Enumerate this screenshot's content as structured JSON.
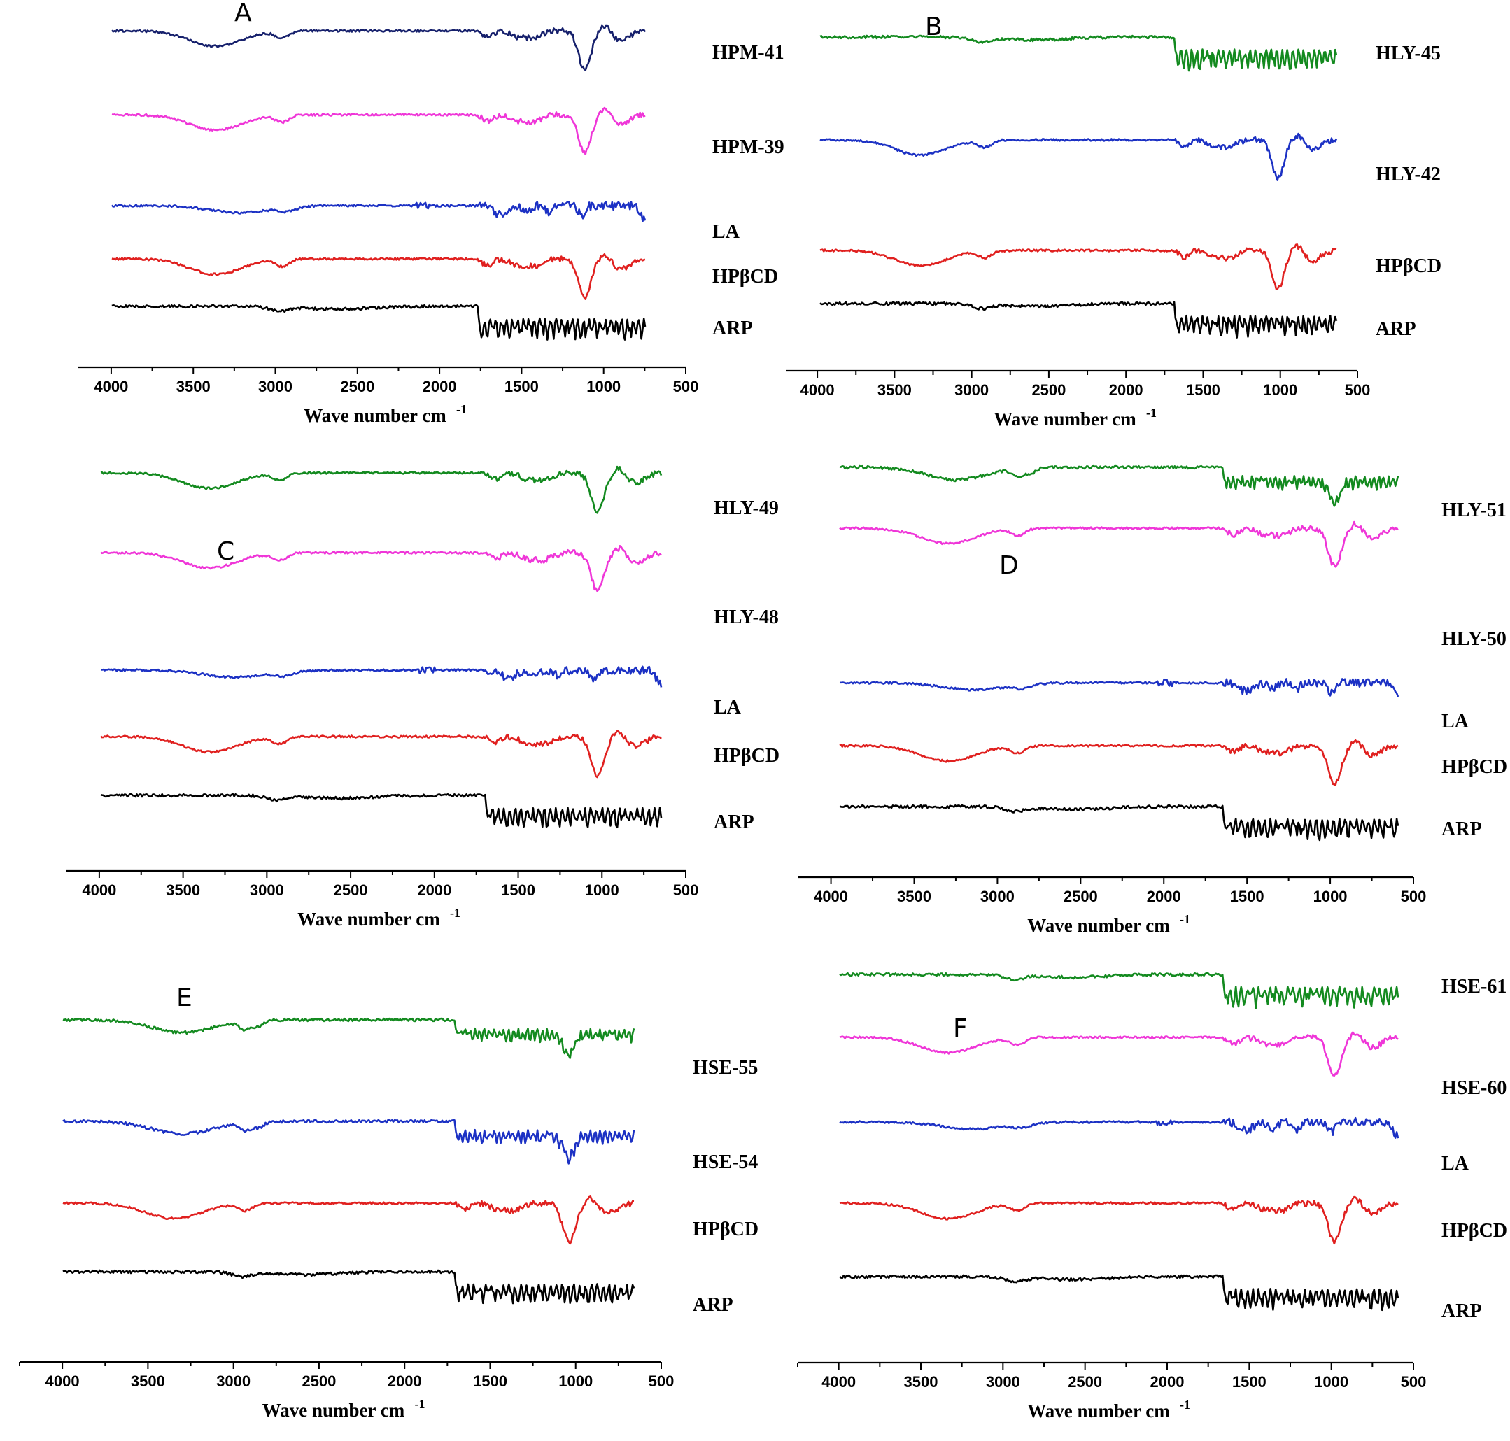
{
  "figure": {
    "x_ticks": [
      "4000",
      "3500",
      "3000",
      "2500",
      "2000",
      "1500",
      "1000",
      "500"
    ],
    "xlabel": "Wave number cm",
    "xlabel_unit_sup": "-1",
    "colors": {
      "black": "#000000",
      "red": "#e0201f",
      "blue": "#1c31c4",
      "magenta": "#ef36d8",
      "green": "#138a1f",
      "navy": "#16206c"
    }
  },
  "chart_data": [
    {
      "panel": "A",
      "type": "line",
      "xlabel": "Wave number cm-1",
      "xlim": [
        4200,
        500
      ],
      "series": [
        {
          "name": "HPM-41",
          "color": "#16206c",
          "style": "cd"
        },
        {
          "name": "HPM-39",
          "color": "#ef36d8",
          "style": "cd"
        },
        {
          "name": "LA",
          "color": "#1c31c4",
          "style": "la"
        },
        {
          "name": "HPβCD",
          "color": "#e0201f",
          "style": "cd"
        },
        {
          "name": "ARP",
          "color": "#000000",
          "style": "arp"
        }
      ]
    },
    {
      "panel": "B",
      "type": "line",
      "xlabel": "Wave number cm-1",
      "xlim": [
        4200,
        500
      ],
      "series": [
        {
          "name": "HLY-45",
          "color": "#138a1f",
          "style": "arp"
        },
        {
          "name": "HLY-42",
          "color": "#1c31c4",
          "style": "cd"
        },
        {
          "name": "HPβCD",
          "color": "#e0201f",
          "style": "cd"
        },
        {
          "name": "ARP",
          "color": "#000000",
          "style": "arp"
        }
      ]
    },
    {
      "panel": "C",
      "type": "line",
      "xlabel": "Wave number cm-1",
      "xlim": [
        4200,
        500
      ],
      "series": [
        {
          "name": "HLY-49",
          "color": "#138a1f",
          "style": "cd"
        },
        {
          "name": "HLY-48",
          "color": "#ef36d8",
          "style": "cd"
        },
        {
          "name": "LA",
          "color": "#1c31c4",
          "style": "la"
        },
        {
          "name": "HPβCD",
          "color": "#e0201f",
          "style": "cd"
        },
        {
          "name": "ARP",
          "color": "#000000",
          "style": "arp"
        }
      ]
    },
    {
      "panel": "D",
      "type": "line",
      "xlabel": "Wave number cm-1",
      "xlim": [
        4200,
        500
      ],
      "series": [
        {
          "name": "HLY-51",
          "color": "#138a1f",
          "style": "mix"
        },
        {
          "name": "HLY-50",
          "color": "#ef36d8",
          "style": "cd"
        },
        {
          "name": "LA",
          "color": "#1c31c4",
          "style": "la"
        },
        {
          "name": "HPβCD",
          "color": "#e0201f",
          "style": "cd"
        },
        {
          "name": "ARP",
          "color": "#000000",
          "style": "arp"
        }
      ]
    },
    {
      "panel": "E",
      "type": "line",
      "xlabel": "Wave number cm-1",
      "xlim": [
        4250,
        500
      ],
      "series": [
        {
          "name": "HSE-55",
          "color": "#138a1f",
          "style": "mix"
        },
        {
          "name": "HSE-54",
          "color": "#1c31c4",
          "style": "mix"
        },
        {
          "name": "HPβCD",
          "color": "#e0201f",
          "style": "cd"
        },
        {
          "name": "ARP",
          "color": "#000000",
          "style": "arp"
        }
      ]
    },
    {
      "panel": "F",
      "type": "line",
      "xlabel": "Wave number cm-1",
      "xlim": [
        4250,
        500
      ],
      "series": [
        {
          "name": "HSE-61",
          "color": "#138a1f",
          "style": "arp"
        },
        {
          "name": "HSE-60",
          "color": "#ef36d8",
          "style": "cd"
        },
        {
          "name": "LA",
          "color": "#1c31c4",
          "style": "la"
        },
        {
          "name": "HPβCD",
          "color": "#e0201f",
          "style": "cd"
        },
        {
          "name": "ARP",
          "color": "#000000",
          "style": "arp"
        }
      ]
    }
  ]
}
